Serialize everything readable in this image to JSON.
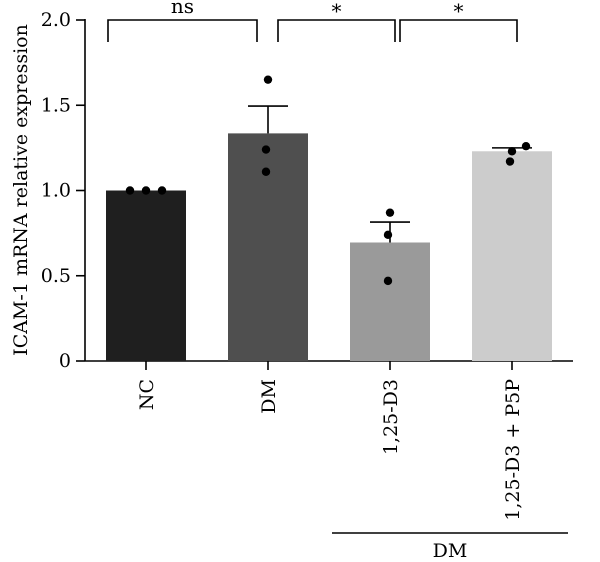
{
  "chart_data": {
    "type": "bar",
    "title": "",
    "xlabel": "",
    "ylabel": "ICAM-1 mRNA relative expression",
    "ylim": [
      0,
      2.0
    ],
    "yticks": [
      "0",
      "0.5",
      "1.0",
      "1.5",
      "2.0"
    ],
    "ytick_values": [
      0,
      0.5,
      1.0,
      1.5,
      2.0
    ],
    "categories": [
      "NC",
      "DM",
      "1,25-D3",
      "1,25-D3 + P5P"
    ],
    "values": [
      1.0,
      1.335,
      0.695,
      1.23
    ],
    "errors": [
      0.0,
      0.16,
      0.12,
      0.02
    ],
    "points": [
      [
        1.0,
        1.0,
        1.0
      ],
      [
        1.65,
        1.24,
        1.11
      ],
      [
        0.87,
        0.74,
        0.47
      ],
      [
        1.26,
        1.23,
        1.17
      ]
    ],
    "colors": [
      "#1f1f1f",
      "#4f4f4f",
      "#9a9a9a",
      "#cccccc"
    ],
    "comparisons": [
      {
        "from": 0,
        "to": 1,
        "label": "ns"
      },
      {
        "from": 1,
        "to": 2,
        "label": "*"
      },
      {
        "from": 2,
        "to": 3,
        "label": "*"
      }
    ],
    "group": {
      "label": "DM",
      "from": 2,
      "to": 3
    },
    "grid": false,
    "legend": "none"
  }
}
